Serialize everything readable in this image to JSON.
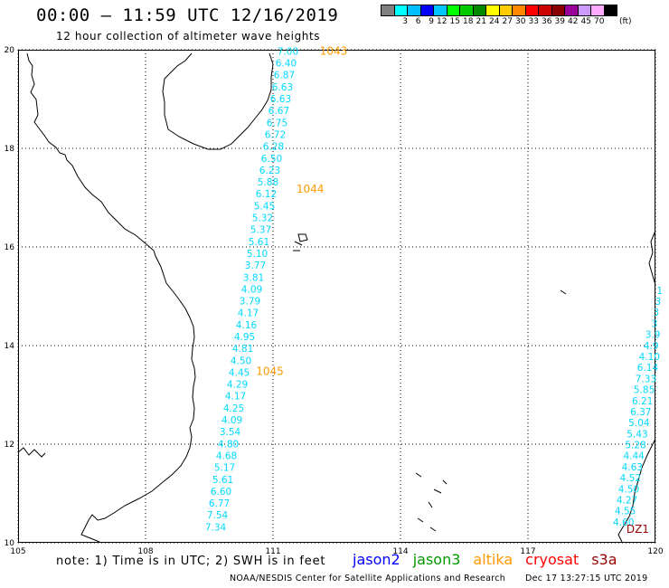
{
  "header": {
    "title": "00:00 – 11:59 UTC 12/16/2019",
    "subtitle": "12 hour collection of altimeter wave heights"
  },
  "legend": {
    "unit": "(ft)",
    "items": [
      {
        "label": "",
        "color": "#808080"
      },
      {
        "label": "3",
        "color": "#00ffff"
      },
      {
        "label": "6",
        "color": "#00bfff"
      },
      {
        "label": "9",
        "color": "#0000ff"
      },
      {
        "label": "12",
        "color": "#00c8ff"
      },
      {
        "label": "15",
        "color": "#00ff00"
      },
      {
        "label": "18",
        "color": "#00cc00"
      },
      {
        "label": "21",
        "color": "#008800"
      },
      {
        "label": "24",
        "color": "#ffff00"
      },
      {
        "label": "27",
        "color": "#ffcc00"
      },
      {
        "label": "30",
        "color": "#ff8800"
      },
      {
        "label": "33",
        "color": "#ff0000"
      },
      {
        "label": "36",
        "color": "#cc0000"
      },
      {
        "label": "39",
        "color": "#880000"
      },
      {
        "label": "42",
        "color": "#990099"
      },
      {
        "label": "45",
        "color": "#cc99ff"
      },
      {
        "label": "70",
        "color": "#ffaaff"
      },
      {
        "label": "",
        "color": "#000000"
      }
    ]
  },
  "map": {
    "lon_range": [
      105,
      120
    ],
    "lat_range": [
      10,
      20
    ],
    "lon_ticks": [
      "105",
      "108",
      "111",
      "114",
      "117",
      "120"
    ],
    "lat_ticks": [
      "20",
      "18",
      "16",
      "14",
      "12",
      "10"
    ],
    "colors": {
      "swh": "#00d8ff",
      "marker": "#ff9900",
      "marker_dark": "#990000"
    },
    "pass_labels": [
      {
        "text": "1043",
        "lon": 112.1,
        "lat": 19.9
      },
      {
        "text": "1044",
        "lon": 111.55,
        "lat": 17.1
      },
      {
        "text": "1045",
        "lon": 110.6,
        "lat": 13.4
      },
      {
        "text": "DZ1",
        "lon": 119.85,
        "lat": 10.2
      }
    ],
    "track_main": {
      "values": [
        "7.00",
        "6.40",
        "6.87",
        "6.63",
        "6.63",
        "6.67",
        "6.75",
        "6.72",
        "6.28",
        "6.50",
        "6.23",
        "5.88",
        "6.12",
        "5.45",
        "5.32",
        "5.37",
        "5.61",
        "5.10",
        "3.77",
        "3.81",
        "4.09",
        "3.79",
        "4.17",
        "4.16",
        "4.95",
        "4.81",
        "4.50",
        "4.45",
        "4.29",
        "4.17",
        "4.25",
        "4.09",
        "3.54",
        "4.80",
        "4.68",
        "5.17",
        "5.61",
        "6.60",
        "6.77",
        "7.54",
        "7.34"
      ],
      "start": [
        111.35,
        19.9
      ],
      "end": [
        109.65,
        10.25
      ]
    },
    "track_east": {
      "values": [
        "1",
        "3",
        "3",
        "3",
        "3.9",
        "4.9",
        "4.10",
        "6.14",
        "7.33",
        "5.85",
        "6.21",
        "6.37",
        "5.04",
        "5.43",
        "5.28",
        "4.44",
        "4.63",
        "4.52",
        "4.50",
        "4.27",
        "4.55",
        "4.60"
      ],
      "start": [
        120.1,
        15.05
      ],
      "end": [
        119.25,
        10.35
      ]
    }
  },
  "footer": {
    "note": "note:  1) Time is in UTC;  2) SWH is in feet",
    "satellites": [
      {
        "name": "jason2",
        "color": "#0000ff"
      },
      {
        "name": "jason3",
        "color": "#009900"
      },
      {
        "name": "altika",
        "color": "#ff9900"
      },
      {
        "name": "cryosat",
        "color": "#ff0000"
      },
      {
        "name": "s3a",
        "color": "#990000"
      }
    ],
    "credit": "NOAA/NESDIS Center for Satellite Applications and Research",
    "timestamp": "Dec 17 13:27:15 UTC 2019"
  }
}
